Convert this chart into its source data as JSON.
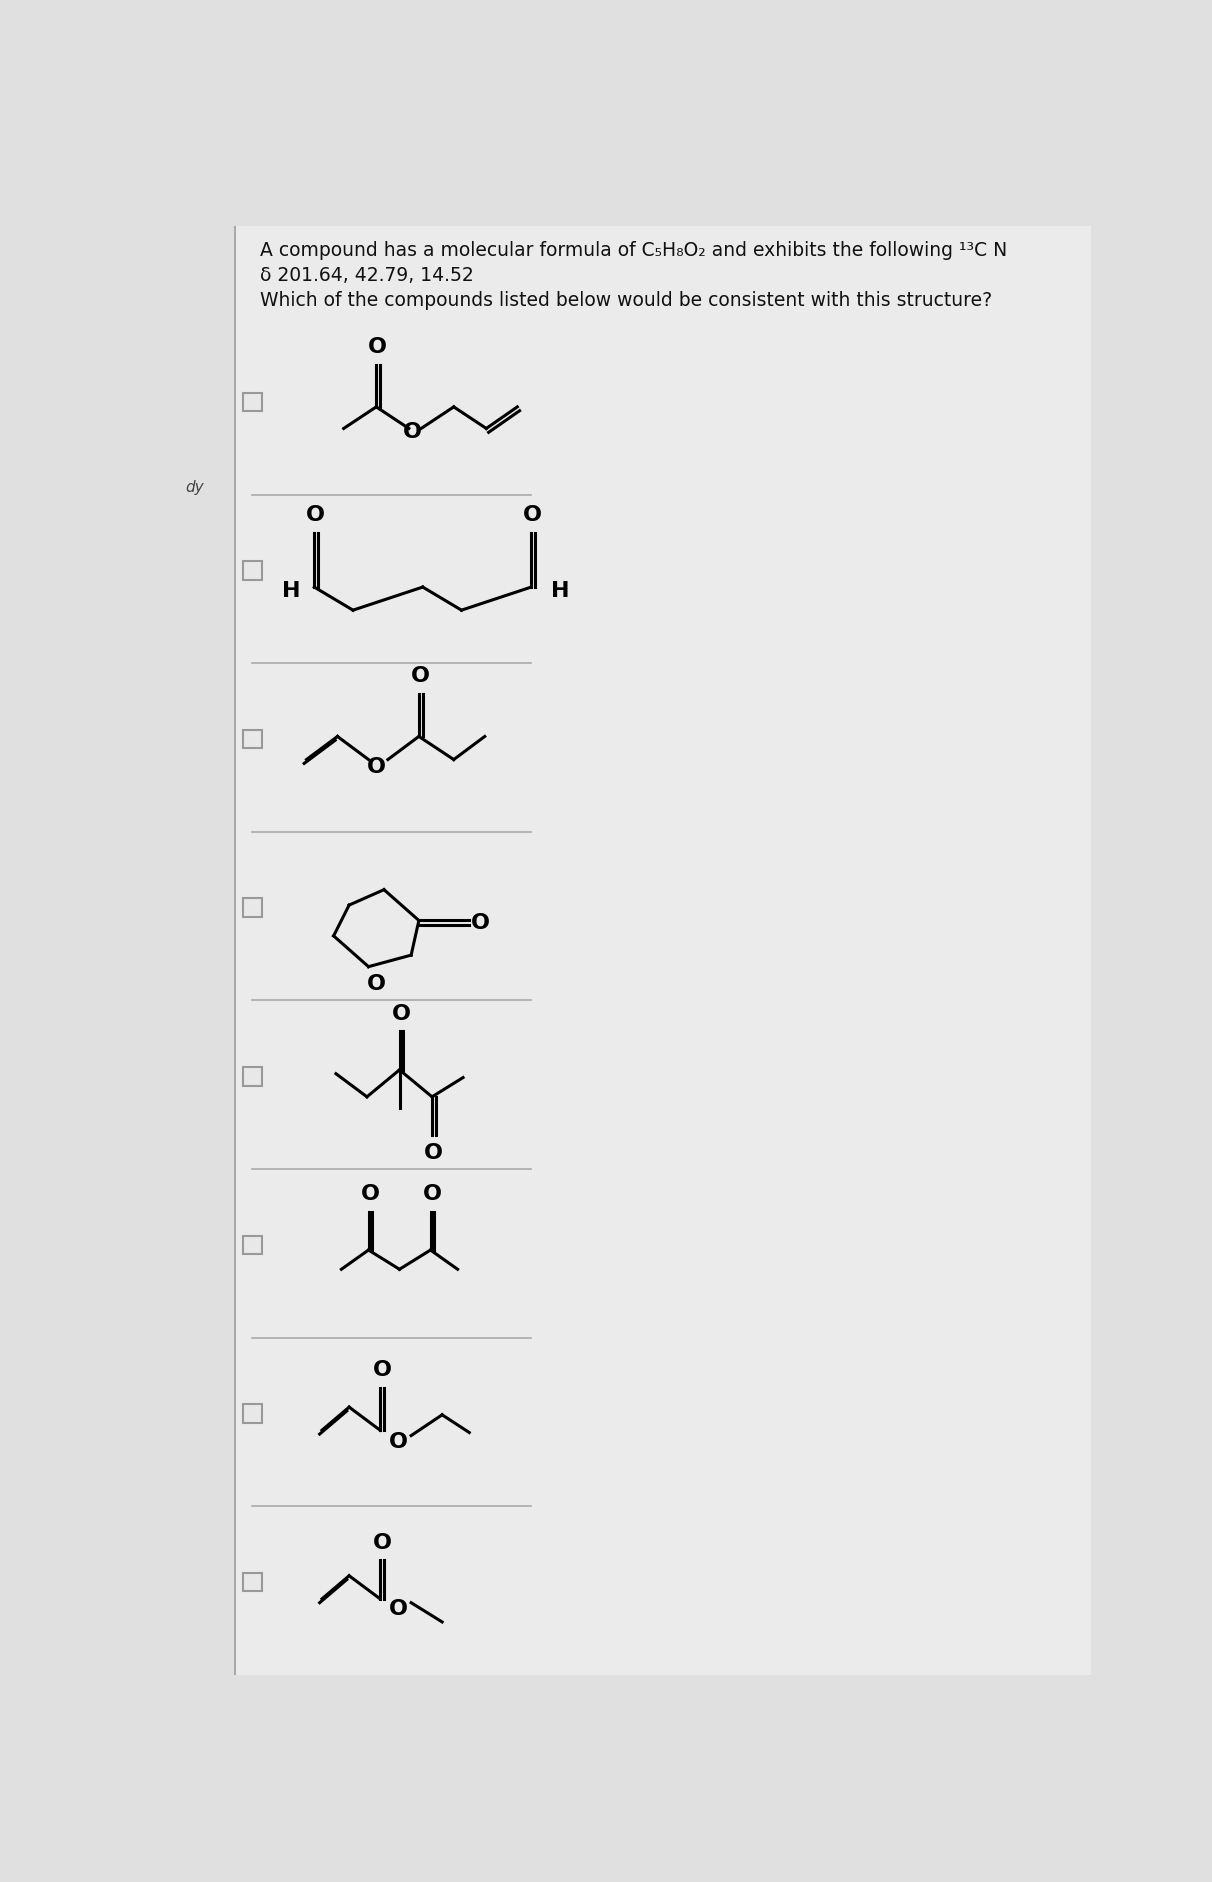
{
  "title_line1": "A compound has a molecular formula of C₅H₈O₂ and exhibits the following ¹³C N",
  "title_line2": "δ 201.64, 42.79, 14.52",
  "title_line3": "Which of the compounds listed below would be consistent with this structure?",
  "background_color": "#e0e0e0",
  "panel_color": "#e8e8e8",
  "text_color": "#111111",
  "checkbox_color": "#e8e8e8",
  "checkbox_edge": "#999999",
  "divider_color": "#aaaaaa",
  "sidebar_text": "dy",
  "sidebar_color": "#444444"
}
